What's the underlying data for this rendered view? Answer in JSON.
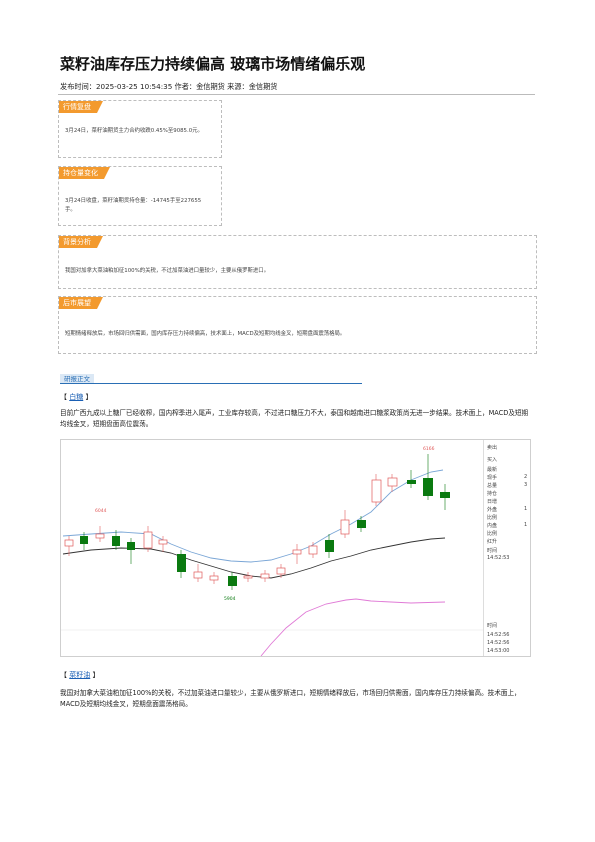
{
  "title": "菜籽油库存压力持续偏高 玻璃市场情绪偏乐观",
  "meta": {
    "text": "发布时间：2025-03-25 10:54:35 作者：金信期货 来源：金信期货"
  },
  "boxes": [
    {
      "tag": "行情复盘",
      "text": "3月24日，菜籽油期货主力合约收跌0.45%至9085.0元。"
    },
    {
      "tag": "持仓量变化",
      "text": "3月24日收盘，菜籽油期货持仓量：-14745手至227655手。"
    },
    {
      "tag": "背景分析",
      "text": "我国对加拿大菜油粕加征100%的关税，不过加菜油进口量较少，主要从俄罗斯进口。"
    },
    {
      "tag": "后市展望",
      "text": "短期情绪释放后，市场回归供需面，国内库存压力持续偏高，技术面上，MACD及短期均线金叉，短期盘面震荡格局。"
    }
  ],
  "zhengwen_label": "研报正文",
  "sections": [
    {
      "bracket_open": "【",
      "name": "白糖",
      "bracket_close": "】",
      "text": "目前广西九成以上糖厂已经收榨，国内榨季进入尾声，工业库存较高，不过进口糖压力不大，泰国和越南进口糖浆政策尚无进一步结果。技术面上，MACD及短期均线金叉，短期盘面高位震荡。"
    },
    {
      "bracket_open": "【",
      "name": "菜籽油",
      "bracket_close": "】",
      "text": "我国对加拿大菜油粕加征100%的关税，不过加菜油进口量较少，主要从俄罗斯进口，短期情绪释放后，市场回归供需面，国内库存压力持续偏高。技术面上，MACD及短期均线金叉，短期盘面震荡格局。"
    }
  ],
  "chart": {
    "label_high": "6166",
    "label_left": "6044",
    "label_low": "5904",
    "side_labels": [
      "卖出",
      "买入",
      "最新",
      "现手",
      "总量",
      "持仓",
      "日增",
      "外盘",
      "比例",
      "内盘",
      "比例",
      "红升",
      "时间",
      "14:52:53",
      "时间",
      "14:52:56",
      "14:52:56",
      "14:53:00"
    ],
    "side_values": [
      "2",
      "3",
      "1",
      "1"
    ],
    "colors": {
      "up": "#e05a5a",
      "down": "#0a7a10",
      "mid": "#7aa6d6",
      "ma": "#333333",
      "macd": "#e07ad6"
    }
  }
}
